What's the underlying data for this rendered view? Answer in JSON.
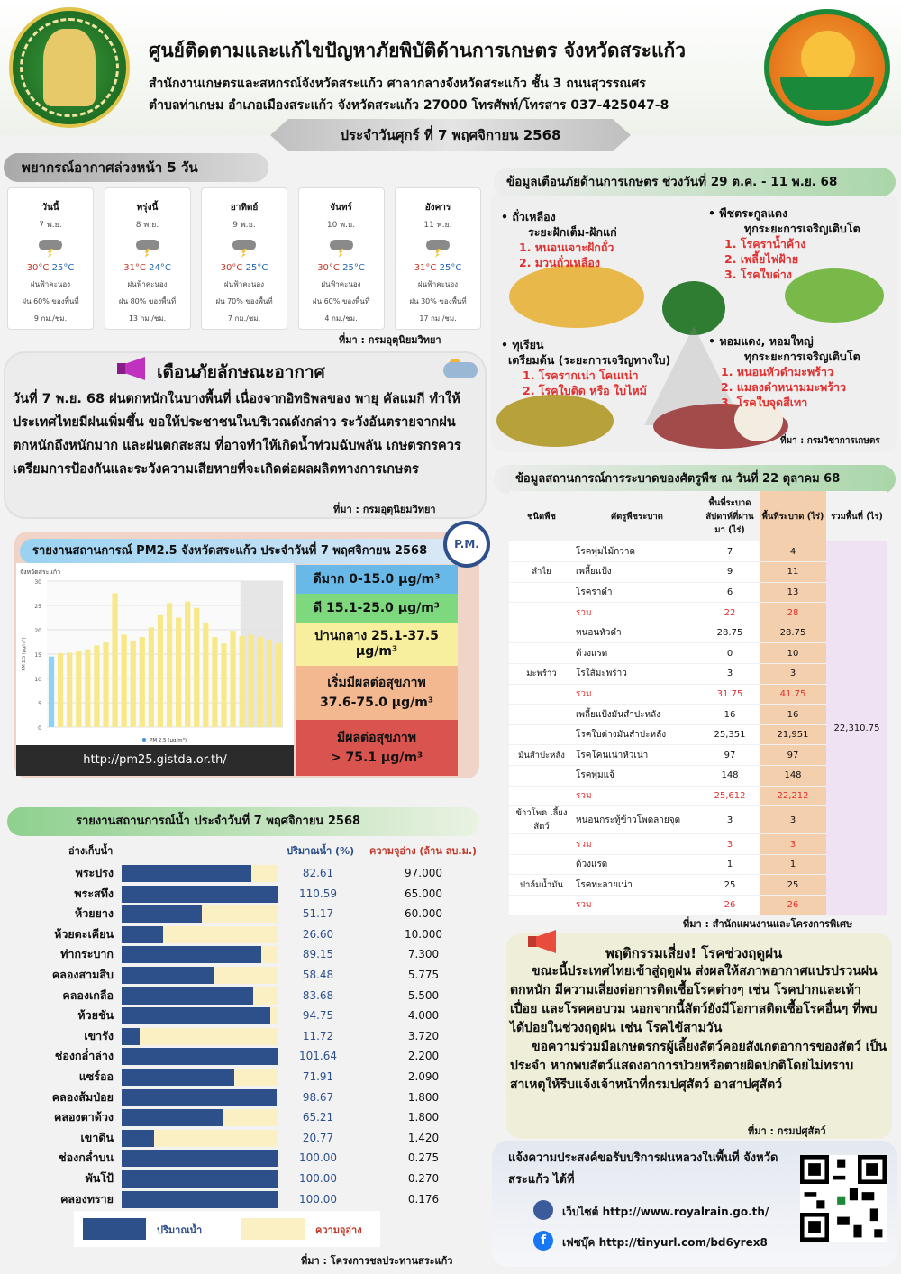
{
  "header": {
    "title": "ศูนย์ติดตามและแก้ไขปัญหาภัยพิบัติด้านการเกษตร จังหวัดสระแก้ว",
    "subtitle1": "สำนักงานเกษตรและสหกรณ์จังหวัดสระแก้ว ศาลากลางจังหวัดสระแก้ว ชั้น 3 ถนนสุวรรณศร",
    "subtitle2": "ตำบลท่าเกษม อำเภอเมืองสระแก้ว จังหวัดสระแก้ว 27000 โทรศัพท์/โทรสาร 037-425047-8",
    "date": "ประจำวันศุกร์ ที่ 7 พฤศจิกายน 2568"
  },
  "weather": {
    "title": "พยากรณ์อากาศล่วงหน้า 5 วัน",
    "days": [
      {
        "name": "วันนี้",
        "date": "7 พ.ย.",
        "hi": "30°C",
        "lo": "25°C",
        "desc": "ฝนฟ้าคะนอง",
        "rain": "ฝน 60% ของพื้นที่",
        "wind": "9 กม./ชม."
      },
      {
        "name": "พรุ่งนี้",
        "date": "8 พ.ย.",
        "hi": "31°C",
        "lo": "24°C",
        "desc": "ฝนฟ้าคะนอง",
        "rain": "ฝน 80% ของพื้นที่",
        "wind": "13 กม./ชม."
      },
      {
        "name": "อาทิตย์",
        "date": "9 พ.ย.",
        "hi": "30°C",
        "lo": "25°C",
        "desc": "ฝนฟ้าคะนอง",
        "rain": "ฝน 70% ของพื้นที่",
        "wind": "7 กม./ชม."
      },
      {
        "name": "จันทร์",
        "date": "10 พ.ย.",
        "hi": "30°C",
        "lo": "25°C",
        "desc": "ฝนฟ้าคะนอง",
        "rain": "ฝน 60% ของพื้นที่",
        "wind": "4 กม./ชม."
      },
      {
        "name": "อังคาร",
        "date": "11 พ.ย.",
        "hi": "31°C",
        "lo": "25°C",
        "desc": "ฝนฟ้าคะนอง",
        "rain": "ฝน 30% ของพื้นที่",
        "wind": "17 กม./ชม."
      }
    ],
    "source": "ที่มา : กรมอุตุนิยมวิทยา"
  },
  "warning": {
    "title": "เตือนภัยลักษณะอากาศ",
    "text": "วันที่ 7 พ.ย. 68 ฝนตกหนักในบางพื้นที่ เนื่องจากอิทธิพลของ พายุ คัลแมกี ทำให้ประเทศไทยมีฝนเพิ่มขึ้น ขอให้ประชาชนในบริเวณดังกล่าว ระวังอันตรายจากฝนตกหนักถึงหนักมาก และฝนตกสะสม ที่อาจทำให้เกิดน้ำท่วมฉับพลัน เกษตรกรควรเตรียมการป้องกันและระวังความเสียหายที่จะเกิดต่อผลผลิตทางการเกษตร",
    "source": "ที่มา : กรมอุตุนิยมวิทยา"
  },
  "pm": {
    "title": "รายงานสถานการณ์ PM2.5 จังหวัดสระแก้ว ประจำวันที่ 7 พฤศจิกายน 2568",
    "badge": "P.M.",
    "url": "http://pm25.gistda.or.th/",
    "scale": {
      "s1": "ดีมาก 0-15.0 µg/m³",
      "s2": "ดี 15.1-25.0 µg/m³",
      "s3a": "ปานกลาง 25.1-37.5",
      "s3b": "µg/m³",
      "s4a": "เริ่มมีผลต่อสุขภาพ",
      "s4b": "37.6-75.0 µg/m³",
      "s5a": "มีผลต่อสุขภาพ",
      "s5b": "> 75.1 µg/m³"
    }
  },
  "chart_data": {
    "type": "bar",
    "title": "จังหวัดสระแก้ว",
    "ylabel": "PM 2.5 (µg/m³)",
    "ylim": [
      0,
      30
    ],
    "yticks": [
      0,
      5,
      10,
      15,
      20,
      25,
      30
    ],
    "series": [
      {
        "name": "PM 2.5 (µg/m³)",
        "values": [
          14.5,
          15.2,
          15.3,
          15.6,
          16.0,
          16.8,
          17.5,
          27.5,
          19.0,
          17.8,
          18.5,
          20.5,
          23.0,
          25.5,
          22.5,
          25.8,
          24.5,
          21.5,
          18.5,
          17.2,
          19.8,
          18.7,
          19.0,
          18.5,
          18.0,
          17.2
        ]
      }
    ],
    "colors": {
      "low": "#8fd3f4",
      "moderate": "#f7e98a"
    }
  },
  "water": {
    "title": "รายงานสถานการณ์น้ำ ประจำวันที่ 7 พฤศจิกายน 2568",
    "col_name": "อ่างเก็บน้ำ",
    "col_pct": "ปริมาณน้ำ (%)",
    "col_cap": "ความจุอ่าง (ล้าน ลบ.ม.)",
    "rows": [
      {
        "name": "พระปรง",
        "pct": "82.61",
        "cap": "97.000",
        "value": 82.61
      },
      {
        "name": "พระสทึง",
        "pct": "110.59",
        "cap": "65.000",
        "value": 110.59
      },
      {
        "name": "ห้วยยาง",
        "pct": "51.17",
        "cap": "60.000",
        "value": 51.17
      },
      {
        "name": "ห้วยตะเคียน",
        "pct": "26.60",
        "cap": "10.000",
        "value": 26.6
      },
      {
        "name": "ท่ากระบาก",
        "pct": "89.15",
        "cap": "7.300",
        "value": 89.15
      },
      {
        "name": "คลองสามสิบ",
        "pct": "58.48",
        "cap": "5.775",
        "value": 58.48
      },
      {
        "name": "คลองเกลือ",
        "pct": "83.68",
        "cap": "5.500",
        "value": 83.68
      },
      {
        "name": "ห้วยชัน",
        "pct": "94.75",
        "cap": "4.000",
        "value": 94.75
      },
      {
        "name": "เขารัง",
        "pct": "11.72",
        "cap": "3.720",
        "value": 11.72
      },
      {
        "name": "ช่องกล่ำล่าง",
        "pct": "101.64",
        "cap": "2.200",
        "value": 101.64
      },
      {
        "name": "แซร์ออ",
        "pct": "71.91",
        "cap": "2.090",
        "value": 71.91
      },
      {
        "name": "คลองส้มป่อย",
        "pct": "98.67",
        "cap": "1.800",
        "value": 98.67
      },
      {
        "name": "คลองตาด้วง",
        "pct": "65.21",
        "cap": "1.800",
        "value": 65.21
      },
      {
        "name": "เขาดิน",
        "pct": "20.77",
        "cap": "1.420",
        "value": 20.77
      },
      {
        "name": "ช่องกล่ำบน",
        "pct": "100.00",
        "cap": "0.275",
        "value": 100.0
      },
      {
        "name": "พันโป้",
        "pct": "100.00",
        "cap": "0.270",
        "value": 100.0
      },
      {
        "name": "คลองทราย",
        "pct": "100.00",
        "cap": "0.176",
        "value": 100.0
      }
    ],
    "legend_volume": "ปริมาณน้ำ",
    "legend_capacity": "ความจุอ่าง",
    "source": "ที่มา : โครงการชลประทานสระแก้ว"
  },
  "hazard": {
    "title": "ข้อมูลเตือนภัยด้านการเกษตร ช่วงวันที่ 29 ต.ค. - 11 พ.ย. 68",
    "g1": {
      "head": "• ถั่วเหลือง",
      "sub": "ระยะฝักเต็ม-ฝักแก่",
      "i1": "1. หนอนเจาะฝักถั่ว",
      "i2": "2. มวนถั่วเหลือง"
    },
    "g2": {
      "head": "• พืชตระกูลแตง",
      "sub": "ทุกระยะการเจริญเติบโต",
      "i1": "1. โรคราน้ำค้าง",
      "i2": "2. เพลี้ยไฟฝ้าย",
      "i3": "3. โรคใบด่าง"
    },
    "g3": {
      "head": "• ทุเรียน",
      "sub": "เตรียมต้น (ระยะการเจริญทางใบ)",
      "i1": "1. โรครากเน่า โคนเน่า",
      "i2": "2. โรคใบติด หรือ ใบไหม้"
    },
    "g4": {
      "head": "• หอมแดง, หอมใหญ่",
      "sub": "ทุกระยะการเจริญเติบโต",
      "i1": "1. หนอนหัวดำมะพร้าว",
      "i2": "2. แมลงดำหนามมะพร้าว",
      "i3": "3. โรคใบจุดสีเทา"
    },
    "source": "ที่มา : กรมวิชาการเกษตร"
  },
  "pest": {
    "title": "ข้อมูลสถานการณ์การระบาดของศัตรูพืช ณ วันที่ 22 ตุลาคม 68",
    "headers": [
      "ชนิดพืช",
      "ศัตรูพืชระบาด",
      "พื้นที่ระบาด สัปดาห์ที่ผ่านมา (ไร่)",
      "พื้นที่ระบาด (ไร่)",
      "รวมพื้นที่ (ไร่)"
    ],
    "rows": [
      {
        "crop": "",
        "pest": "โรคพุ่มไม้กวาด",
        "prev": "7",
        "now": "4"
      },
      {
        "crop": "ลำไย",
        "pest": "เพลี้ยแป้ง",
        "prev": "9",
        "now": "11"
      },
      {
        "crop": "",
        "pest": "โรคราดำ",
        "prev": "6",
        "now": "13"
      },
      {
        "crop": "",
        "pest": "รวม",
        "prev": "22",
        "now": "28",
        "sum": true
      },
      {
        "crop": "",
        "pest": "หนอนหัวดำ",
        "prev": "28.75",
        "now": "28.75"
      },
      {
        "crop": "",
        "pest": "ด้วงแรด",
        "prev": "0",
        "now": "10"
      },
      {
        "crop": "มะพร้าว",
        "pest": "โรใส้มะพร้าว",
        "prev": "3",
        "now": "3"
      },
      {
        "crop": "",
        "pest": "รวม",
        "prev": "31.75",
        "now": "41.75",
        "sum": true
      },
      {
        "crop": "",
        "pest": "เพลี้ยแป้งมันสำปะหลัง",
        "prev": "16",
        "now": "16"
      },
      {
        "crop": "",
        "pest": "โรคใบด่างมันสำปะหลัง",
        "prev": "25,351",
        "now": "21,951"
      },
      {
        "crop": "มันสำปะหลัง",
        "pest": "โรคโคนเน่าหัวเน่า",
        "prev": "97",
        "now": "97"
      },
      {
        "crop": "",
        "pest": "โรคพุ่มแจ้",
        "prev": "148",
        "now": "148"
      },
      {
        "crop": "",
        "pest": "รวม",
        "prev": "25,612",
        "now": "22,212",
        "sum": true
      },
      {
        "crop": "ข้าวโพด เลี้ยงสัตว์",
        "pest": "หนอนกระทู้ข้าวโพดลายจุด",
        "prev": "3",
        "now": "3"
      },
      {
        "crop": "",
        "pest": "รวม",
        "prev": "3",
        "now": "3",
        "sum": true
      },
      {
        "crop": "",
        "pest": "ด้วงแรด",
        "prev": "1",
        "now": "1"
      },
      {
        "crop": "ปาล์มน้ำมัน",
        "pest": "โรคทะลายเน่า",
        "prev": "25",
        "now": "25"
      },
      {
        "crop": "",
        "pest": "รวม",
        "prev": "26",
        "now": "26",
        "sum": true
      }
    ],
    "total": "22,310.75",
    "source": "ที่มา : สำนักแผนงานและโครงการพิเศษ"
  },
  "rainy": {
    "title": "พฤติกรรมเสี่ยง! โรคช่วงฤดูฝน",
    "p1": "ขณะนี้ประเทศไทยเข้าสู่ฤดูฝน ส่งผลให้สภาพอากาศแปรปรวนฝนตกหนัก มีความเสี่ยงต่อการติดเชื้อโรคต่างๆ เช่น โรคปากและเท้าเปื่อย และโรคคอบวม นอกจากนี้สัตว์ยังมีโอกาสติดเชื้อโรคอื่นๆ ที่พบได้บ่อยในช่วงฤดูฝน เช่น โรคไข้สามวัน",
    "p2": "ขอความร่วมมือเกษตรกรผู้เลี้ยงสัตว์คอยสังเกตอาการของสัตว์ เป็นประจำ หากพบสัตว์แสดงอาการป่วยหรือตายผิดปกติโดยไม่ทราบสาเหตุให้รีบแจ้งเจ้าหน้าที่กรมปศุสัตว์ อาสาปศุสัตว์",
    "source": "ที่มา : กรมปศุสัตว์"
  },
  "royal_rain": {
    "title": "แจ้งความประสงค์ขอรับบริการฝนหลวงในพื้นที่ จังหวัดสระแก้ว ได้ที่",
    "website": "เว็บไซต์ http://www.royalrain.go.th/",
    "facebook": "เฟซบุ๊ค http://tinyurl.com/bd6yrex8"
  }
}
